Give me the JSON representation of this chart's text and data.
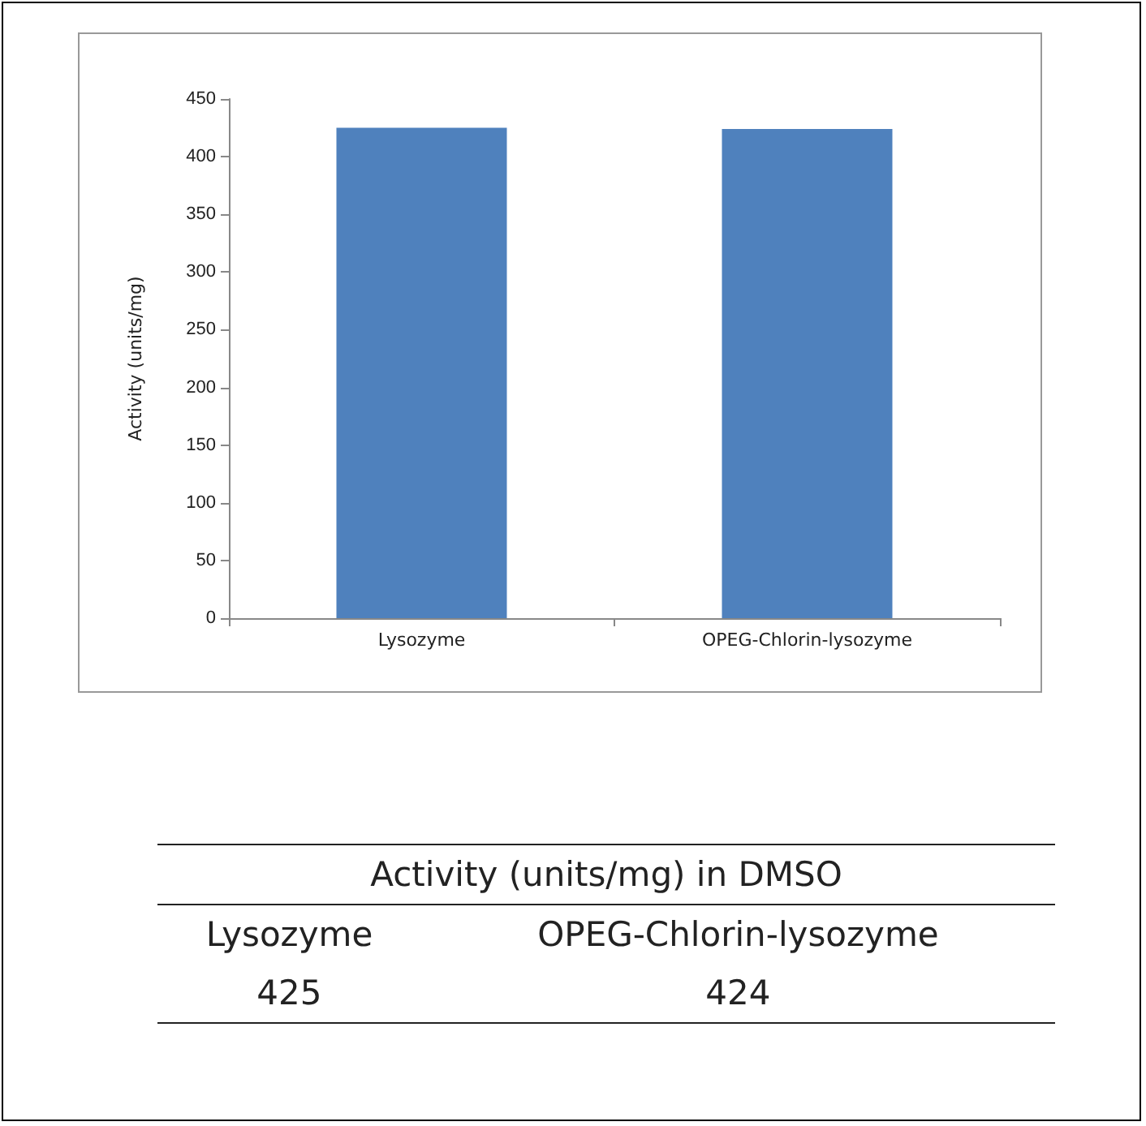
{
  "chart_data": {
    "type": "bar",
    "categories": [
      "Lysozyme",
      "OPEG-Chlorin-lysozyme"
    ],
    "values": [
      425,
      424
    ],
    "color": "#4f81bd",
    "ylabel": "Activity (units/mg)",
    "ylim": [
      0,
      450
    ],
    "yticks": [
      0,
      50,
      100,
      150,
      200,
      250,
      300,
      350,
      400,
      450
    ],
    "data_labels": true,
    "annotations": [
      "Activity (units/mg) in DMSO"
    ]
  }
}
